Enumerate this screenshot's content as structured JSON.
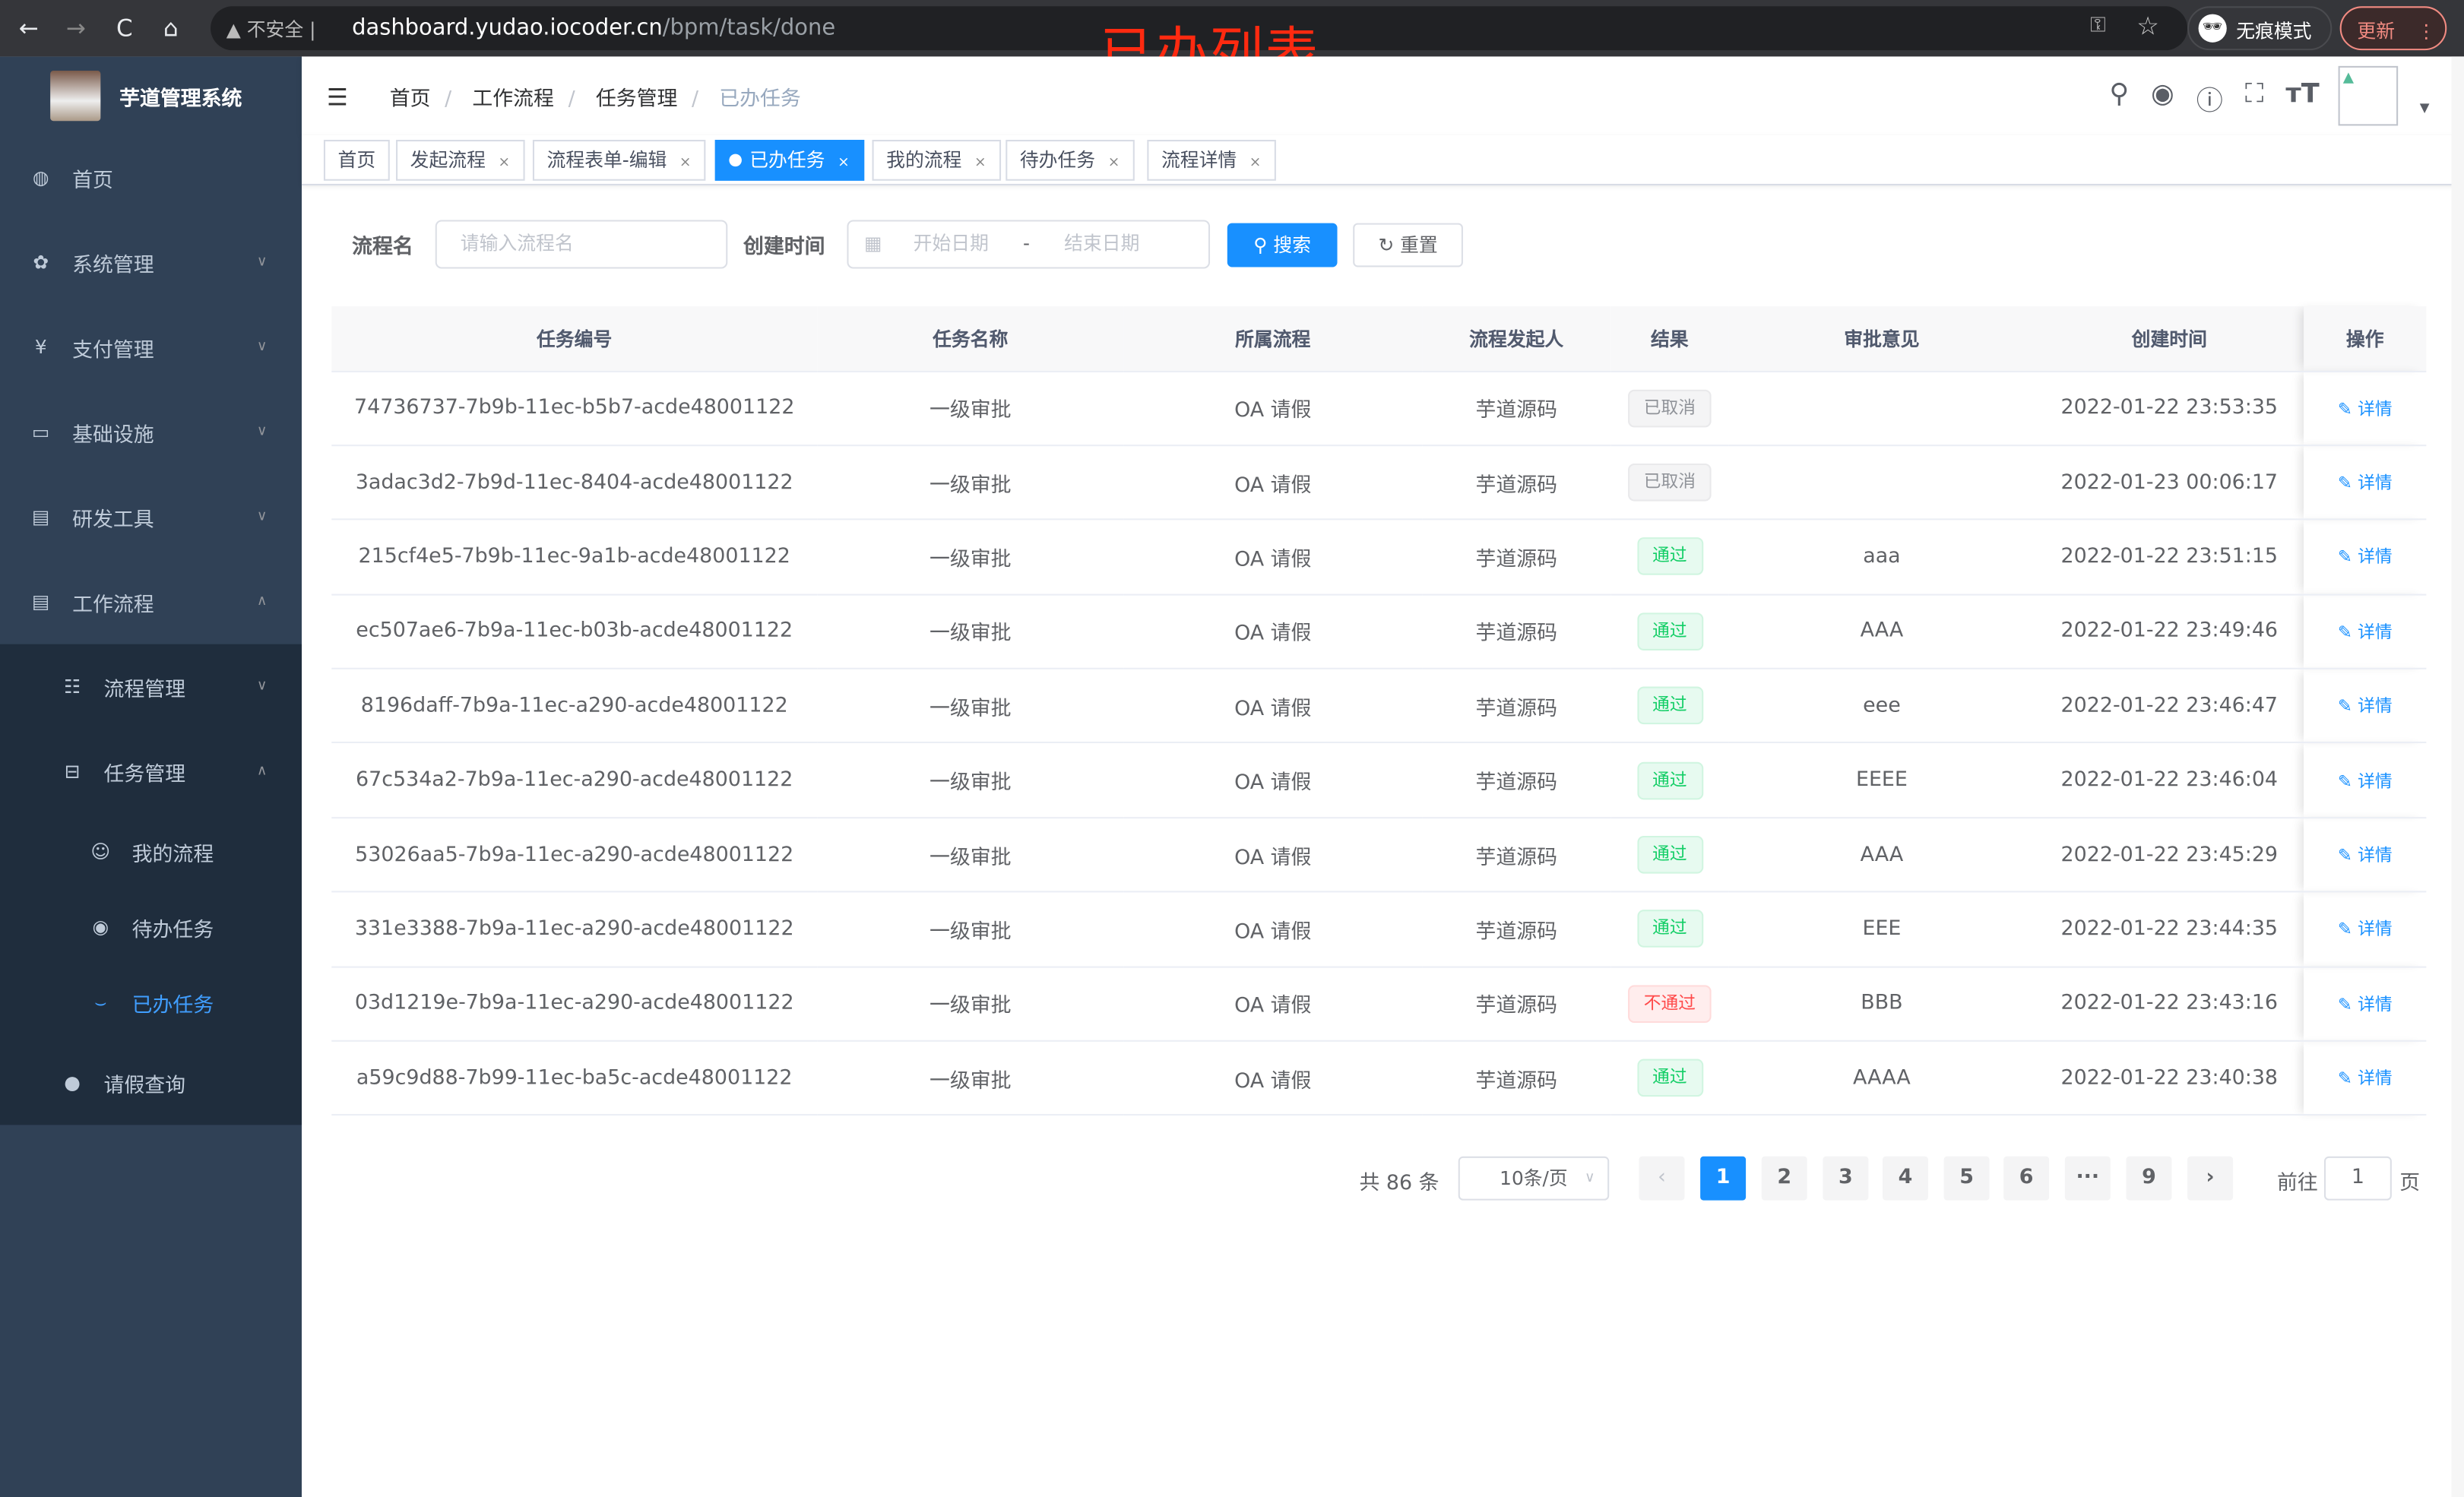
{
  "browser": {
    "nav_back": "←",
    "nav_forward": "→",
    "reload": "C",
    "home": "⌂",
    "security": "不安全",
    "url_host": "dashboard.yudao.iocoder.cn",
    "url_path": "/bpm/task/done",
    "incognito": "无痕模式",
    "update": "更新"
  },
  "overlay_title": "已办列表",
  "sidebar": {
    "app_title": "芋道管理系统",
    "items": [
      {
        "label": "首页",
        "icon": "dashboard-icon"
      },
      {
        "label": "系统管理",
        "icon": "gear-icon"
      },
      {
        "label": "支付管理",
        "icon": "yen-icon"
      },
      {
        "label": "基础设施",
        "icon": "monitor-icon"
      },
      {
        "label": "研发工具",
        "icon": "toolbox-icon"
      },
      {
        "label": "工作流程",
        "icon": "toolbox-icon"
      }
    ],
    "sub": [
      {
        "label": "流程管理"
      },
      {
        "label": "任务管理"
      }
    ],
    "sub2": [
      {
        "label": "我的流程"
      },
      {
        "label": "待办任务"
      },
      {
        "label": "已办任务"
      }
    ],
    "leave": "请假查询"
  },
  "breadcrumb": [
    "首页",
    "工作流程",
    "任务管理",
    "已办任务"
  ],
  "tags": [
    {
      "label": "首页"
    },
    {
      "label": "发起流程"
    },
    {
      "label": "流程表单-编辑"
    },
    {
      "label": "已办任务"
    },
    {
      "label": "我的流程"
    },
    {
      "label": "待办任务"
    },
    {
      "label": "流程详情"
    }
  ],
  "form": {
    "name_label": "流程名",
    "name_placeholder": "请输入流程名",
    "time_label": "创建时间",
    "start_placeholder": "开始日期",
    "sep": "-",
    "end_placeholder": "结束日期",
    "search": "搜索",
    "reset": "重置"
  },
  "table": {
    "headers": [
      "任务编号",
      "任务名称",
      "所属流程",
      "流程发起人",
      "结果",
      "审批意见",
      "创建时间",
      "操作"
    ],
    "rows": [
      [
        "74736737-7b9b-11ec-b5b7-acde48001122",
        "一级审批",
        "OA 请假",
        "芋道源码",
        "已取消",
        "",
        "2022-01-22 23:53:35",
        "详情"
      ],
      [
        "3adac3d2-7b9d-11ec-8404-acde48001122",
        "一级审批",
        "OA 请假",
        "芋道源码",
        "已取消",
        "",
        "2022-01-23 00:06:17",
        "详情"
      ],
      [
        "215cf4e5-7b9b-11ec-9a1b-acde48001122",
        "一级审批",
        "OA 请假",
        "芋道源码",
        "通过",
        "aaa",
        "2022-01-22 23:51:15",
        "详情"
      ],
      [
        "ec507ae6-7b9a-11ec-b03b-acde48001122",
        "一级审批",
        "OA 请假",
        "芋道源码",
        "通过",
        "AAA",
        "2022-01-22 23:49:46",
        "详情"
      ],
      [
        "8196daff-7b9a-11ec-a290-acde48001122",
        "一级审批",
        "OA 请假",
        "芋道源码",
        "通过",
        "eee",
        "2022-01-22 23:46:47",
        "详情"
      ],
      [
        "67c534a2-7b9a-11ec-a290-acde48001122",
        "一级审批",
        "OA 请假",
        "芋道源码",
        "通过",
        "EEEE",
        "2022-01-22 23:46:04",
        "详情"
      ],
      [
        "53026aa5-7b9a-11ec-a290-acde48001122",
        "一级审批",
        "OA 请假",
        "芋道源码",
        "通过",
        "AAA",
        "2022-01-22 23:45:29",
        "详情"
      ],
      [
        "331e3388-7b9a-11ec-a290-acde48001122",
        "一级审批",
        "OA 请假",
        "芋道源码",
        "通过",
        "EEE",
        "2022-01-22 23:44:35",
        "详情"
      ],
      [
        "03d1219e-7b9a-11ec-a290-acde48001122",
        "一级审批",
        "OA 请假",
        "芋道源码",
        "不通过",
        "BBB",
        "2022-01-22 23:43:16",
        "详情"
      ],
      [
        "a59c9d88-7b99-11ec-ba5c-acde48001122",
        "一级审批",
        "OA 请假",
        "芋道源码",
        "通过",
        "AAAA",
        "2022-01-22 23:40:38",
        "详情"
      ]
    ]
  },
  "pagination": {
    "total": "共 86 条",
    "page_size": "10条/页",
    "pages": [
      "1",
      "2",
      "3",
      "4",
      "5",
      "6",
      "···",
      "9"
    ],
    "current": "1",
    "goto_label": "前往",
    "goto_value": "1",
    "page_unit": "页"
  },
  "colors": {
    "accent": "#1890ff",
    "sidebar": "#304156",
    "pass": "#13ce66",
    "reject": "#ff4949",
    "cancel": "#909399"
  }
}
